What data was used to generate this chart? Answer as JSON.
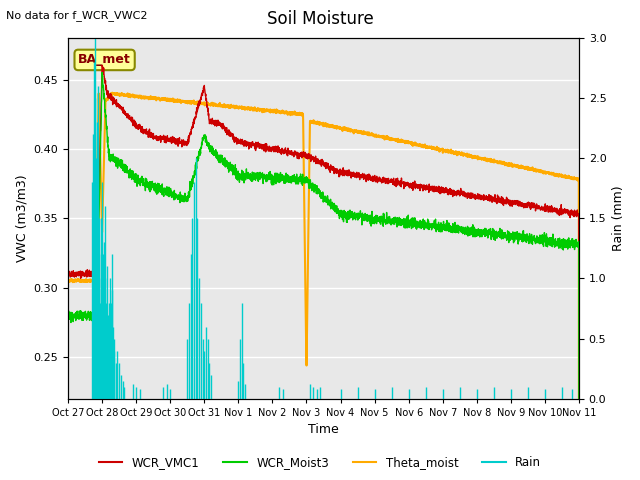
{
  "title": "Soil Moisture",
  "subtitle": "No data for f_WCR_VWC2",
  "ylabel_left": "VWC (m3/m3)",
  "ylabel_right": "Rain (mm)",
  "xlabel": "Time",
  "ylim_left": [
    0.22,
    0.48
  ],
  "ylim_right": [
    0.0,
    3.0
  ],
  "ba_met_label": "BA_met",
  "colors": {
    "WCR_VMC1": "#cc0000",
    "WCR_Moist3": "#00cc00",
    "Theta_moist": "#ffaa00",
    "Rain": "#00cccc"
  },
  "x_tick_labels": [
    "Oct 27",
    "Oct 28",
    "Oct 29",
    "Oct 30",
    "Oct 31",
    "Nov 1",
    "Nov 2",
    "Nov 3",
    "Nov 4",
    "Nov 5",
    "Nov 6",
    "Nov 7",
    "Nov 8",
    "Nov 9",
    "Nov 10",
    "Nov 11"
  ],
  "x_tick_positions": [
    0,
    1,
    2,
    3,
    4,
    5,
    6,
    7,
    8,
    9,
    10,
    11,
    12,
    13,
    14,
    15
  ],
  "figsize": [
    6.4,
    4.8
  ],
  "dpi": 100
}
